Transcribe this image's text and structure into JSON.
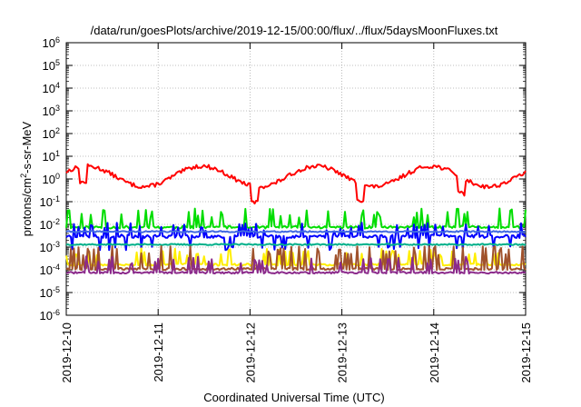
{
  "chart_data": {
    "type": "line",
    "title": "/data/run/goesPlots/archive/2019-12-15/00:00/flux/../flux/5daysMoonFluxes.txt",
    "xlabel": "Coordinated Universal Time (UTC)",
    "ylabel": {
      "base": "protons/cm",
      "sup": "2",
      "rest": "-s-sr-MeV"
    },
    "x_tick_labels": [
      "2019-12-10",
      "2019-12-11",
      "2019-12-12",
      "2019-12-13",
      "2019-12-14",
      "2019-12-15"
    ],
    "xlim_days": [
      0,
      5
    ],
    "yscale": "log",
    "y_exponents": [
      -6,
      -5,
      -4,
      -3,
      -2,
      -1,
      0,
      1,
      2,
      3,
      4,
      5,
      6
    ],
    "ylim": [
      1e-06,
      1000000.0
    ],
    "grid": true,
    "legend": "none",
    "series": [
      {
        "color": "#ff0000",
        "kind": "wave",
        "base": 1.3,
        "amp": 0.45,
        "period": 1.25,
        "phase": 0.45,
        "noise": 0.18,
        "dips": [
          0.18,
          2.05,
          3.2,
          4.3
        ]
      },
      {
        "color": "#00dd00",
        "kind": "spiky",
        "base": 0.0075,
        "spike": 0.05,
        "noise": 0.12,
        "seed": 11
      },
      {
        "color": "#0000ff",
        "kind": "spiky",
        "base": 0.003,
        "spike": 0.012,
        "dipto": 0.0009,
        "noise": 0.15,
        "seed": 23
      },
      {
        "color": "#00b08a",
        "kind": "steady",
        "base": 0.0013,
        "noise": 0.06,
        "seed": 37
      },
      {
        "color": "#4169e1",
        "kind": "steady",
        "base": 0.0048,
        "noise": 0.06,
        "seed": 41
      },
      {
        "color": "#ffee00",
        "kind": "spiky",
        "base": 0.00017,
        "spike": 0.0009,
        "noise": 0.1,
        "seed": 53
      },
      {
        "color": "#a0522d",
        "kind": "spiky",
        "base": 0.00011,
        "spike": 0.0011,
        "noise": 0.1,
        "seed": 67
      },
      {
        "color": "#8b2a8b",
        "kind": "spiky",
        "base": 7.5e-05,
        "spike": 0.0004,
        "noise": 0.08,
        "seed": 71
      }
    ]
  }
}
